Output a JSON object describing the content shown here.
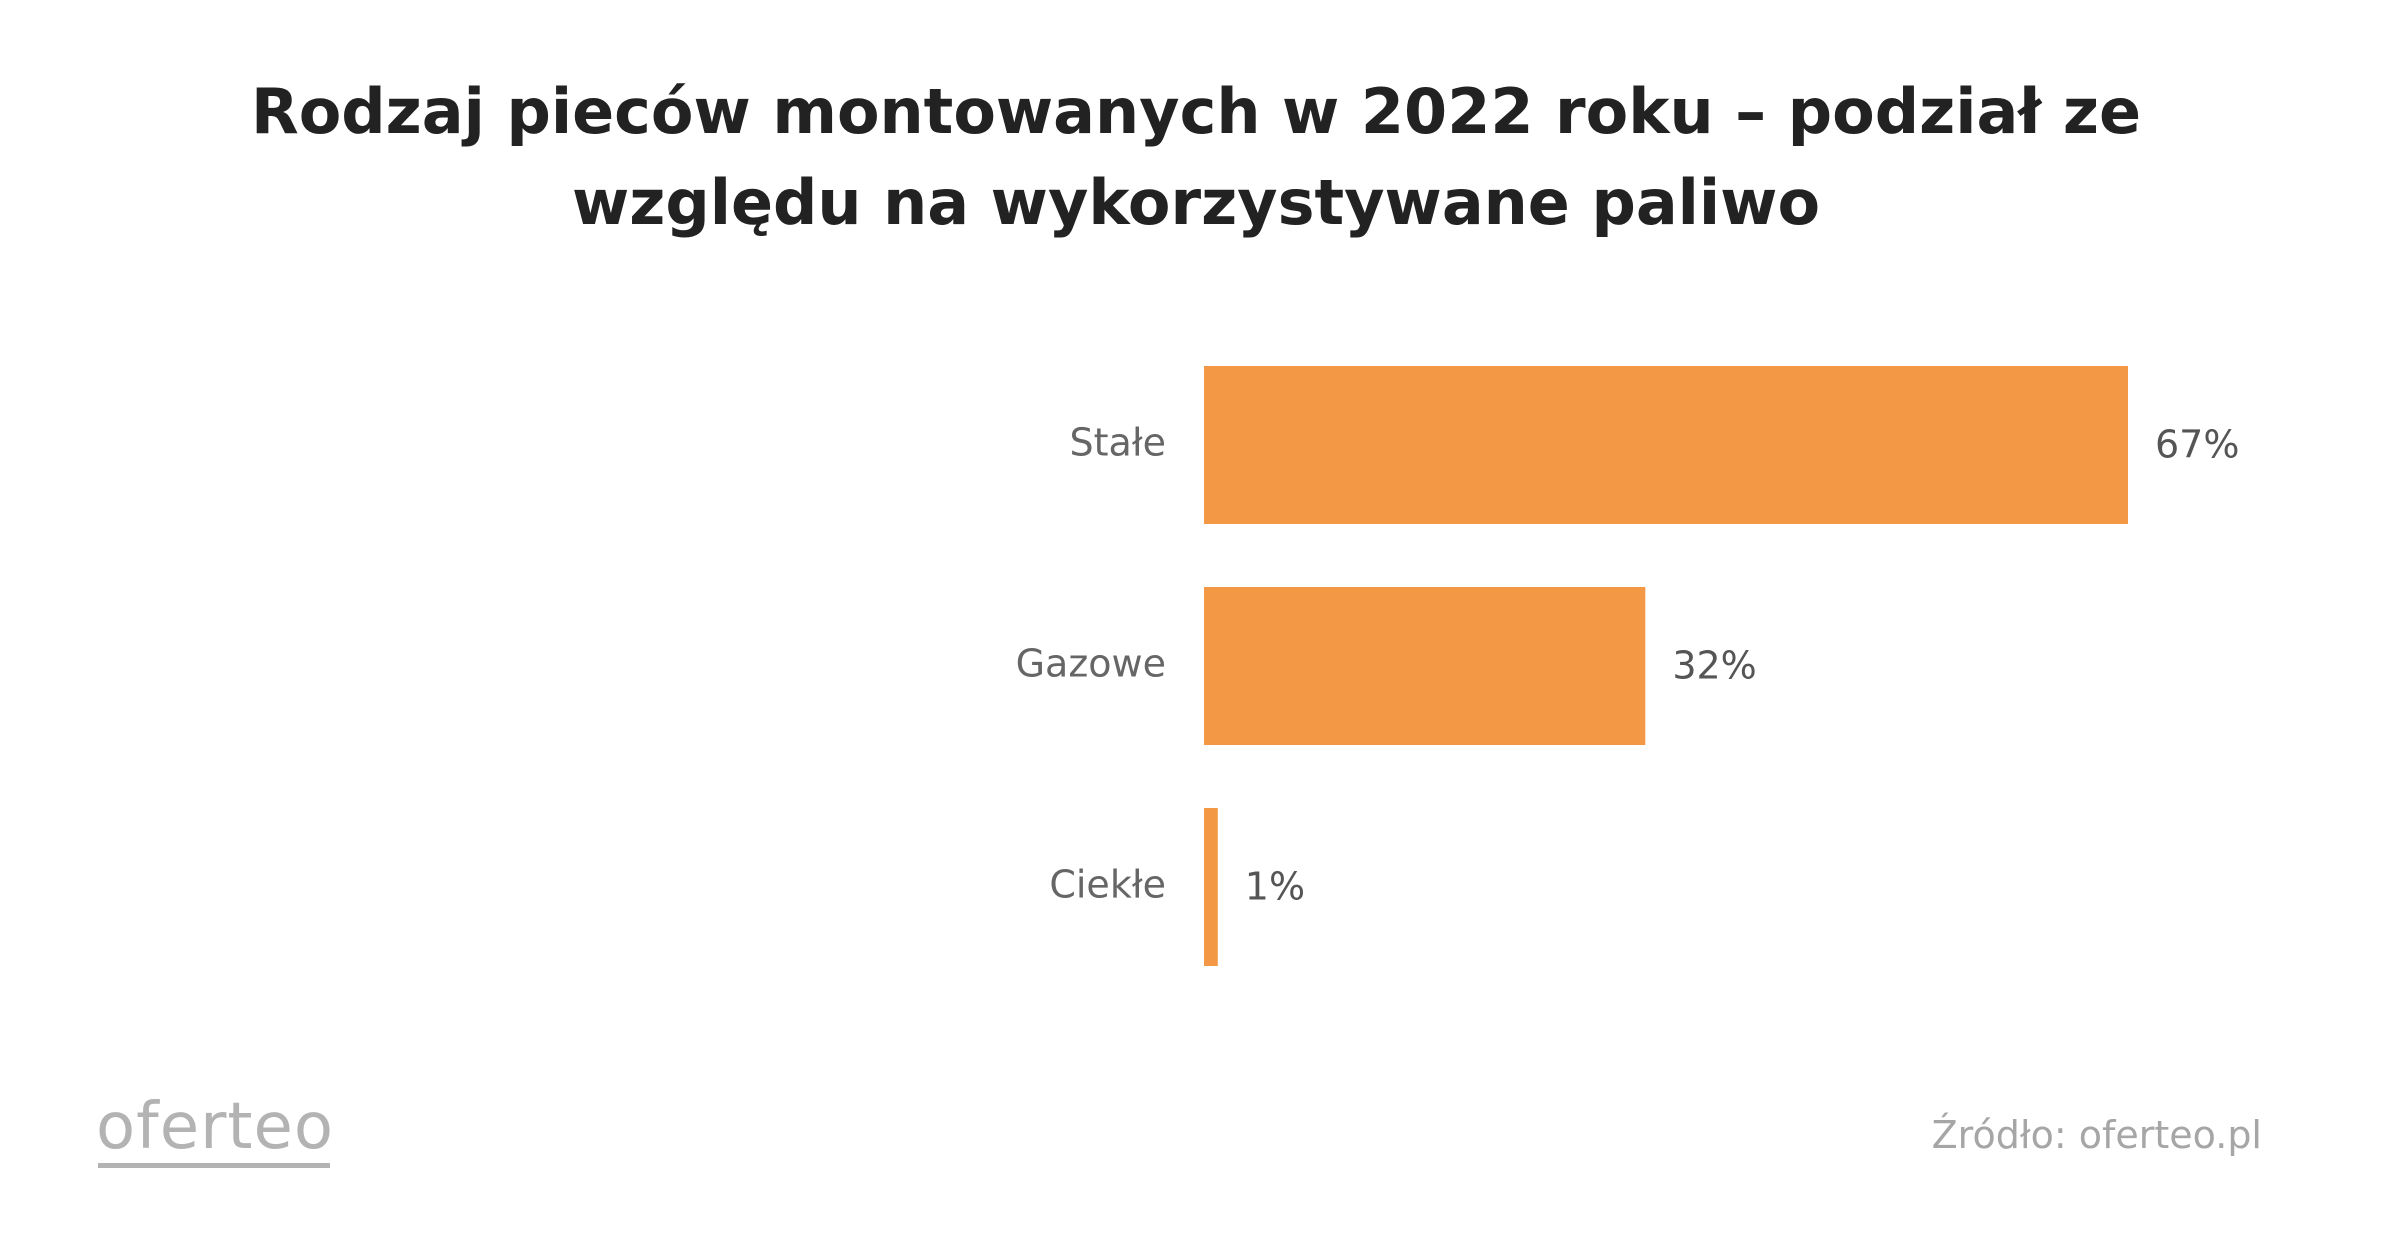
{
  "chart_data": {
    "type": "bar",
    "orientation": "horizontal",
    "title": "Rodzaj pieców montowanych w 2022 roku – podział ze względu na wykorzystywane paliwo",
    "categories": [
      "Stałe",
      "Gazowe",
      "Ciekłe"
    ],
    "values": [
      67,
      32,
      1
    ],
    "value_labels": [
      "67%",
      "32%",
      "1%"
    ],
    "unit": "%",
    "xlim": [
      0,
      67
    ],
    "grid": false,
    "bar_color": "#F39844"
  },
  "footer": {
    "logo_text": "oferteo",
    "source": "Źródło: oferteo.pl"
  }
}
